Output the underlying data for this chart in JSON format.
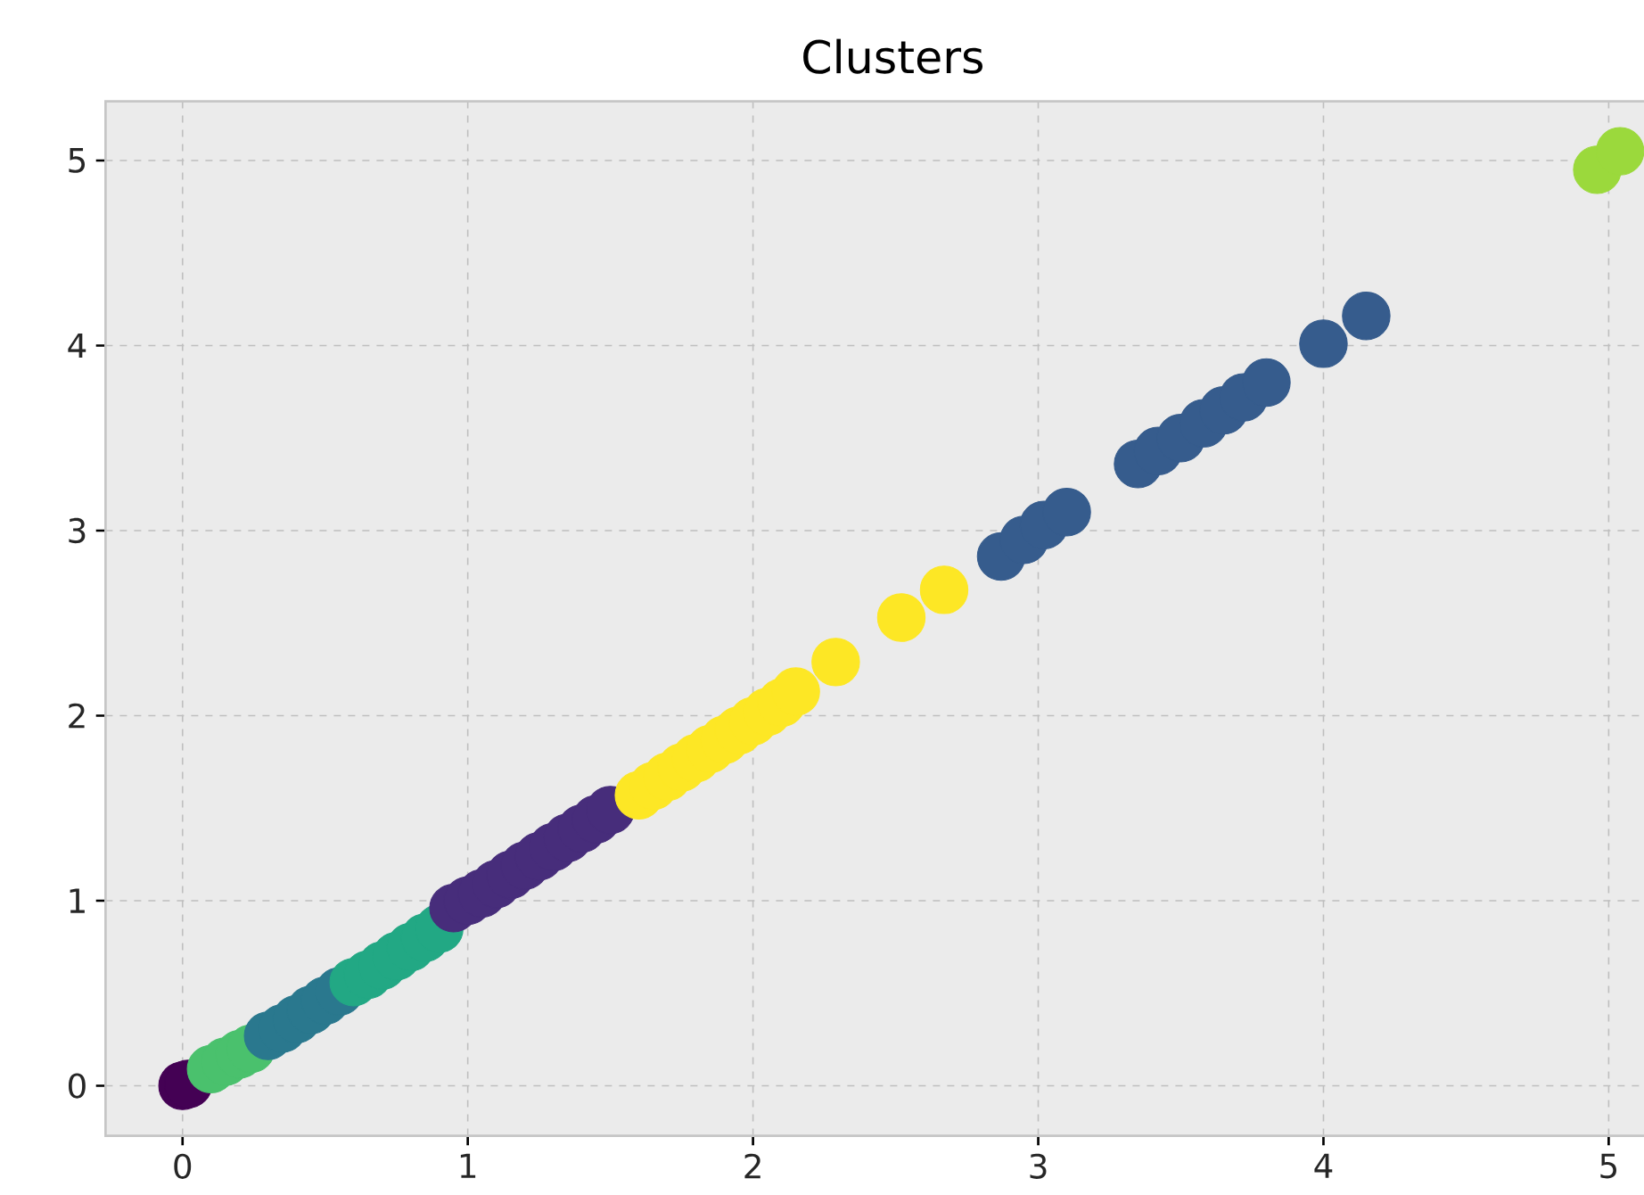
{
  "chart_data": {
    "type": "scatter",
    "title": "Clusters",
    "marker": "circle",
    "grid": true,
    "xlim": [
      -0.27,
      5.25
    ],
    "ylim": [
      -0.27,
      5.32
    ],
    "xticks": [
      0,
      1,
      2,
      3,
      4,
      5
    ],
    "yticks": [
      0,
      1,
      2,
      3,
      4,
      5
    ],
    "series": [
      {
        "color": "#440154",
        "x": [
          0,
          0.02
        ],
        "values": [
          0,
          0.01
        ]
      },
      {
        "color": "#4ac16d",
        "x": [
          0.1,
          0.15,
          0.2,
          0.24
        ],
        "values": [
          0.09,
          0.13,
          0.17,
          0.2
        ]
      },
      {
        "color": "#2a788e",
        "x": [
          0.3,
          0.35,
          0.4,
          0.45,
          0.5,
          0.55
        ],
        "values": [
          0.27,
          0.31,
          0.36,
          0.41,
          0.46,
          0.51
        ]
      },
      {
        "color": "#22a884",
        "x": [
          0.6,
          0.65,
          0.7,
          0.75,
          0.8,
          0.85,
          0.9
        ],
        "values": [
          0.56,
          0.6,
          0.65,
          0.7,
          0.75,
          0.8,
          0.85
        ]
      },
      {
        "color": "#472d7b",
        "x": [
          0.95,
          1.0,
          1.05,
          1.1,
          1.15,
          1.2,
          1.25,
          1.3,
          1.35,
          1.4,
          1.45,
          1.5
        ],
        "values": [
          0.96,
          1.0,
          1.04,
          1.09,
          1.14,
          1.19,
          1.24,
          1.29,
          1.34,
          1.39,
          1.44,
          1.49
        ]
      },
      {
        "color": "#fde725",
        "x": [
          1.6,
          1.65,
          1.7,
          1.75,
          1.8,
          1.85,
          1.9,
          1.95,
          2.0,
          2.05,
          2.1,
          2.15,
          2.29,
          2.52,
          2.67
        ],
        "values": [
          1.57,
          1.62,
          1.67,
          1.72,
          1.77,
          1.82,
          1.87,
          1.92,
          1.97,
          2.02,
          2.07,
          2.13,
          2.29,
          2.53,
          2.68
        ]
      },
      {
        "color": "#365c8d",
        "x": [
          2.87,
          2.95,
          3.02,
          3.1,
          3.35,
          3.42,
          3.5,
          3.58,
          3.65,
          3.72,
          3.8,
          4.0,
          4.15
        ],
        "values": [
          2.86,
          2.95,
          3.03,
          3.1,
          3.36,
          3.43,
          3.5,
          3.58,
          3.65,
          3.72,
          3.8,
          4.01,
          4.16
        ]
      },
      {
        "color": "#9bd93c",
        "x": [
          4.96,
          5.04
        ],
        "values": [
          4.95,
          5.05
        ]
      }
    ]
  }
}
